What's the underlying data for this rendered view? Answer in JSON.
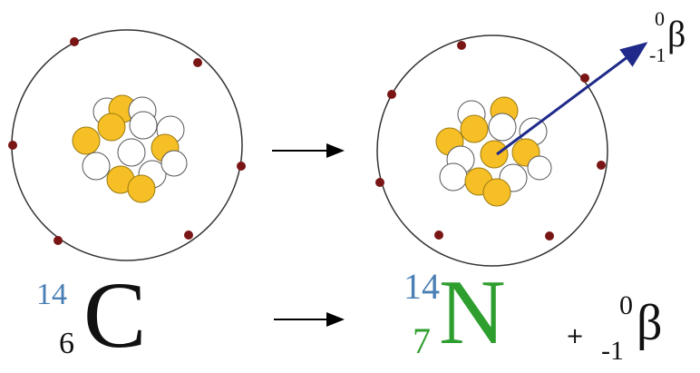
{
  "reaction": {
    "reactant": {
      "mass_number": "14",
      "atomic_number": "6",
      "symbol": "C"
    },
    "product": {
      "mass_number": "14",
      "atomic_number": "7",
      "symbol": "N"
    },
    "plus_sign": "+",
    "beta": {
      "superscript": "0",
      "subscript": "-1",
      "symbol": "β"
    }
  },
  "emitted_particle": {
    "superscript": "0",
    "subscript": "-1",
    "symbol": "β"
  },
  "colors": {
    "proton": "#f6bf26",
    "neutron": "#ffffff",
    "electron": "#7a1515",
    "orbit": "#333333",
    "beta_arrow": "#1f2a8a",
    "mass_number": "#4a7fb5",
    "nitrogen": "#2e9e2e",
    "text": "#111111"
  },
  "atoms": [
    {
      "name": "carbon-14",
      "protons": 6,
      "neutrons": 8,
      "electrons": 6
    },
    {
      "name": "nitrogen-14",
      "protons": 7,
      "neutrons": 7,
      "electrons": 7
    }
  ]
}
